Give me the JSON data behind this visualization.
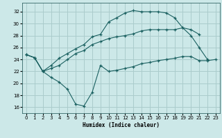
{
  "xlabel": "Humidex (Indice chaleur)",
  "bg_color": "#cce8e8",
  "grid_color": "#aacccc",
  "line_color": "#1a6060",
  "xlim": [
    -0.5,
    23.5
  ],
  "ylim": [
    15.0,
    33.5
  ],
  "yticks": [
    16,
    18,
    20,
    22,
    24,
    26,
    28,
    30,
    32
  ],
  "xticks": [
    0,
    1,
    2,
    3,
    4,
    5,
    6,
    7,
    8,
    9,
    10,
    11,
    12,
    13,
    14,
    15,
    16,
    17,
    18,
    19,
    20,
    21,
    22,
    23
  ],
  "line1_x": [
    0,
    1,
    2,
    3,
    4,
    5,
    6,
    7,
    8,
    9,
    10,
    11,
    12,
    13,
    14,
    15,
    16,
    17,
    18,
    19,
    20,
    21,
    22,
    23
  ],
  "line1_y": [
    24.8,
    24.3,
    22.0,
    21.0,
    20.2,
    19.0,
    16.5,
    16.2,
    18.5,
    23.0,
    22.0,
    22.2,
    22.5,
    22.8,
    23.3,
    23.5,
    23.8,
    24.0,
    24.2,
    24.5,
    24.5,
    23.8,
    23.8,
    24.0
  ],
  "line2_x": [
    0,
    1,
    2,
    3,
    4,
    5,
    6,
    7,
    8,
    9,
    10,
    11,
    12,
    13,
    14,
    15,
    16,
    17,
    18,
    19,
    20,
    21,
    22,
    23
  ],
  "line2_y": [
    24.8,
    24.3,
    22.0,
    23.0,
    24.2,
    25.0,
    25.8,
    26.5,
    27.8,
    28.2,
    30.3,
    31.0,
    31.8,
    32.2,
    32.0,
    32.0,
    32.0,
    31.8,
    31.0,
    29.3,
    28.0,
    26.0,
    24.0,
    null
  ],
  "line3_x": [
    0,
    1,
    2,
    3,
    4,
    5,
    6,
    7,
    8,
    9,
    10,
    11,
    12,
    13,
    14,
    15,
    16,
    17,
    18,
    19,
    20,
    21,
    22,
    23
  ],
  "line3_y": [
    24.8,
    24.3,
    22.0,
    22.5,
    23.0,
    24.0,
    25.0,
    25.5,
    26.5,
    27.0,
    27.5,
    27.8,
    28.0,
    28.3,
    28.8,
    29.0,
    29.0,
    29.0,
    29.0,
    29.3,
    29.0,
    28.2,
    null,
    null
  ]
}
